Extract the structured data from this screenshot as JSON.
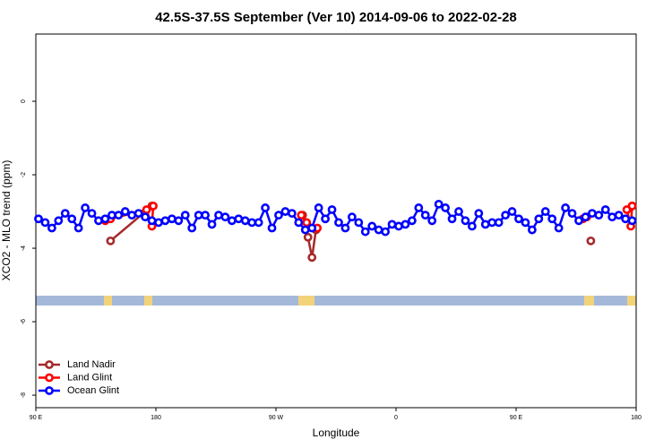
{
  "chart_data": {
    "type": "line",
    "title": "42.5S-37.5S September (Ver 10)   2014-09-06 to 2022-02-28",
    "xlabel": "Longitude",
    "ylabel": "XCO2 - MLO trend (ppm)",
    "xlim": [
      90,
      540
    ],
    "xticks": [
      {
        "value": 90,
        "label": "90 E"
      },
      180,
      {
        "value": 270,
        "label": "90 W"
      },
      {
        "value": 360,
        "label": "0"
      },
      {
        "value": 450,
        "label": "90 E"
      },
      {
        "value": 540,
        "label": "180"
      }
    ],
    "ylim": [
      -8.34,
      1.83
    ],
    "yticks": [
      0,
      -2,
      -4,
      -6,
      -8
    ],
    "legend": "bottom-left",
    "series": [
      {
        "name": "Land Nadir",
        "color": "#a52a2a",
        "x": [
          146,
          177,
          230,
          290,
          294,
          297,
          300,
          400,
          506,
          520,
          537
        ],
        "values": [
          -3.8,
          -2.85,
          null,
          -3.1,
          -3.7,
          -4.25,
          -3.5,
          null,
          -3.8,
          null,
          -2.85
        ]
      },
      {
        "name": "Land Glint",
        "color": "#ff0000",
        "x": [
          142,
          146,
          173,
          177,
          178,
          230,
          289,
          293,
          301,
          400,
          500,
          503,
          520,
          533,
          536,
          537
        ],
        "values": [
          -3.25,
          -3.2,
          -2.95,
          -3.4,
          -2.85,
          null,
          -3.1,
          -3.3,
          -3.45,
          null,
          -3.2,
          -3.15,
          null,
          -2.95,
          -3.4,
          -2.85
        ]
      },
      {
        "name": "Ocean Glint",
        "color": "#0000ff",
        "x": [
          92,
          97,
          102,
          107,
          112,
          117,
          122,
          127,
          132,
          137,
          142,
          147,
          152,
          157,
          162,
          167,
          172,
          177,
          182,
          187,
          192,
          197,
          202,
          207,
          212,
          217,
          222,
          227,
          232,
          237,
          242,
          247,
          252,
          257,
          262,
          267,
          272,
          277,
          282,
          287,
          292,
          297,
          302,
          307,
          312,
          317,
          322,
          327,
          332,
          337,
          342,
          347,
          352,
          357,
          362,
          367,
          372,
          377,
          382,
          387,
          392,
          397,
          402,
          407,
          412,
          417,
          422,
          427,
          432,
          437,
          442,
          447,
          452,
          457,
          462,
          467,
          472,
          477,
          482,
          487,
          492,
          497,
          502,
          507,
          512,
          517,
          522,
          527,
          532,
          537
        ],
        "values": [
          -3.2,
          -3.3,
          -3.45,
          -3.25,
          -3.05,
          -3.2,
          -3.45,
          -2.9,
          -3.05,
          -3.25,
          -3.2,
          -3.1,
          -3.1,
          -3.0,
          -3.1,
          -3.05,
          -3.15,
          -3.25,
          -3.3,
          -3.25,
          -3.2,
          -3.25,
          -3.1,
          -3.45,
          -3.1,
          -3.1,
          -3.35,
          -3.1,
          -3.15,
          -3.25,
          -3.2,
          -3.25,
          -3.3,
          -3.3,
          -2.9,
          -3.45,
          -3.1,
          -3.0,
          -3.05,
          -3.3,
          -3.5,
          -3.45,
          -2.9,
          -3.2,
          -2.95,
          -3.3,
          -3.45,
          -3.15,
          -3.3,
          -3.55,
          -3.4,
          -3.5,
          -3.55,
          -3.35,
          -3.4,
          -3.35,
          -3.25,
          -2.9,
          -3.1,
          -3.25,
          -2.8,
          -2.9,
          -3.2,
          -3.0,
          -3.25,
          -3.4,
          -3.05,
          -3.35,
          -3.3,
          -3.3,
          -3.1,
          -3.0,
          -3.2,
          -3.3,
          -3.5,
          -3.2,
          -3.0,
          -3.2,
          -3.45,
          -2.9,
          -3.05,
          -3.25,
          -3.15,
          -3.05,
          -3.1,
          -2.95,
          -3.15,
          -3.1,
          -3.2,
          -3.25
        ]
      }
    ]
  }
}
